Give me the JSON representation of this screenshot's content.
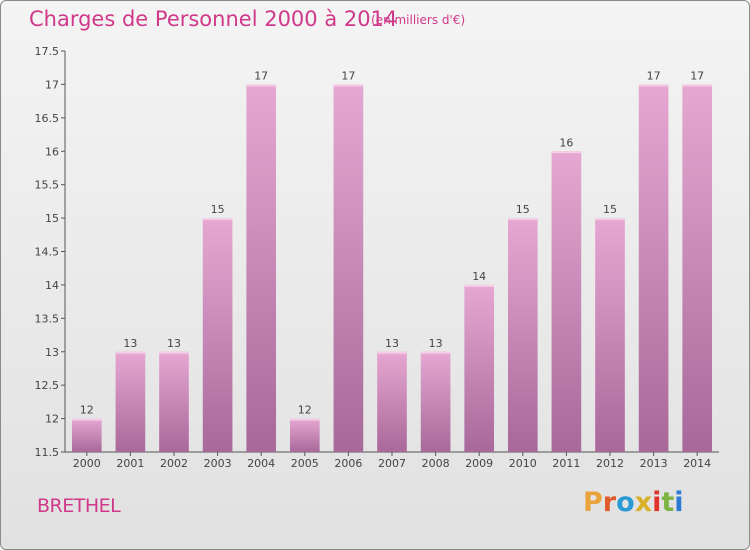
{
  "header": {
    "title": "Charges de Personnel 2000 à 2014",
    "subtitle": "(en milliers d'€)"
  },
  "footer": {
    "place": "BRETHEL",
    "logo": "Proxiti"
  },
  "colors": {
    "accent": "#d0388a",
    "bar_top": "#e6a8d2",
    "bar_bottom": "#a8689a",
    "axis": "#555555",
    "grid": "#cccccc"
  },
  "logo_colors": [
    "#e8a33a",
    "#e05b2a",
    "#2a9ad6",
    "#d9b02a",
    "#e0342a",
    "#7cb342",
    "#2a7ad6"
  ],
  "chart_data": {
    "type": "bar",
    "title": "Charges de Personnel 2000 à 2014",
    "subtitle": "(en milliers d'€)",
    "categories": [
      "2000",
      "2001",
      "2002",
      "2003",
      "2004",
      "2005",
      "2006",
      "2007",
      "2008",
      "2009",
      "2010",
      "2011",
      "2012",
      "2013",
      "2014"
    ],
    "values": [
      12,
      13,
      13,
      15,
      17,
      12,
      17,
      13,
      13,
      14,
      15,
      16,
      15,
      17,
      17
    ],
    "ylim": [
      11.5,
      17.5
    ],
    "yticks": [
      11.5,
      12,
      12.5,
      13,
      13.5,
      14,
      14.5,
      15,
      15.5,
      16,
      16.5,
      17,
      17.5
    ],
    "ytick_labels": [
      "11.5",
      "12",
      "12.5",
      "13",
      "13.5",
      "14",
      "14.5",
      "15",
      "15.5",
      "16",
      "16.5",
      "17",
      "17.5"
    ],
    "grid": false,
    "data_labels": true
  }
}
